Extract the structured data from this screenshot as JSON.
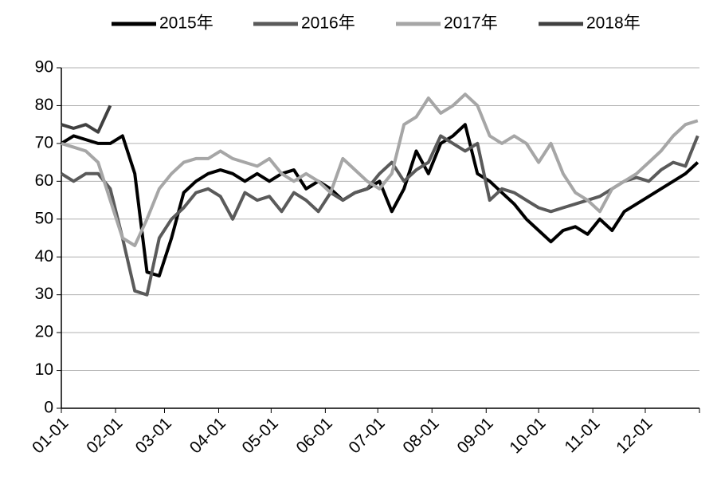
{
  "chart_data": {
    "type": "line",
    "x": [
      "01-01",
      "01-08",
      "01-15",
      "01-22",
      "01-29",
      "02-05",
      "02-12",
      "02-19",
      "02-26",
      "03-05",
      "03-12",
      "03-19",
      "03-26",
      "04-02",
      "04-09",
      "04-16",
      "04-23",
      "04-30",
      "05-07",
      "05-14",
      "05-21",
      "05-28",
      "06-04",
      "06-11",
      "06-18",
      "06-25",
      "07-02",
      "07-09",
      "07-16",
      "07-23",
      "07-30",
      "08-06",
      "08-13",
      "08-20",
      "08-27",
      "09-03",
      "09-10",
      "09-17",
      "09-24",
      "10-01",
      "10-08",
      "10-15",
      "10-22",
      "10-29",
      "11-05",
      "11-12",
      "11-19",
      "11-26",
      "12-03",
      "12-10",
      "12-17",
      "12-24",
      "12-31"
    ],
    "xlim": [
      "01-01",
      "12-31"
    ],
    "xticks": [
      "01-01",
      "02-01",
      "03-01",
      "04-01",
      "05-01",
      "06-01",
      "07-01",
      "08-01",
      "09-01",
      "10-01",
      "11-01",
      "12-01"
    ],
    "ylim": [
      0,
      90
    ],
    "yticks": [
      0,
      10,
      20,
      30,
      40,
      50,
      60,
      70,
      80,
      90
    ],
    "grid": true,
    "legend": "top",
    "series": [
      {
        "name": "2015年",
        "color": "#000000",
        "values": [
          70,
          72,
          71,
          70,
          70,
          72,
          62,
          36,
          35,
          45,
          57,
          60,
          62,
          63,
          62,
          60,
          62,
          60,
          62,
          63,
          58,
          60,
          58,
          55,
          57,
          58,
          60,
          52,
          58,
          68,
          62,
          70,
          72,
          75,
          62,
          60,
          57,
          54,
          50,
          47,
          44,
          47,
          48,
          46,
          50,
          47,
          52,
          54,
          56,
          58,
          60,
          62,
          65
        ]
      },
      {
        "name": "2016年",
        "color": "#5a5a5a",
        "values": [
          62,
          60,
          62,
          62,
          58,
          45,
          31,
          30,
          45,
          50,
          53,
          57,
          58,
          56,
          50,
          57,
          55,
          56,
          52,
          57,
          55,
          52,
          57,
          55,
          57,
          58,
          62,
          65,
          60,
          63,
          65,
          72,
          70,
          68,
          70,
          55,
          58,
          57,
          55,
          53,
          52,
          53,
          54,
          55,
          56,
          58,
          60,
          61,
          60,
          63,
          65,
          64,
          72
        ]
      },
      {
        "name": "2017年",
        "color": "#a6a6a6",
        "values": [
          70,
          69,
          68,
          65,
          55,
          45,
          43,
          50,
          58,
          62,
          65,
          66,
          66,
          68,
          66,
          65,
          64,
          66,
          62,
          60,
          62,
          60,
          57,
          66,
          63,
          60,
          58,
          62,
          75,
          77,
          82,
          78,
          80,
          83,
          80,
          72,
          70,
          72,
          70,
          65,
          70,
          62,
          57,
          55,
          52,
          58,
          60,
          62,
          65,
          68,
          72,
          75,
          76
        ]
      },
      {
        "name": "2018年",
        "color": "#404040",
        "values": [
          75,
          74,
          75,
          73,
          80,
          null,
          null,
          null,
          null,
          null,
          null,
          null,
          null,
          null,
          null,
          null,
          null,
          null,
          null,
          null,
          null,
          null,
          null,
          null,
          null,
          null,
          null,
          null,
          null,
          null,
          null,
          null,
          null,
          null,
          null,
          null,
          null,
          null,
          null,
          null,
          null,
          null,
          null,
          null,
          null,
          null,
          null,
          null,
          null,
          null,
          null,
          null,
          null
        ]
      }
    ]
  }
}
